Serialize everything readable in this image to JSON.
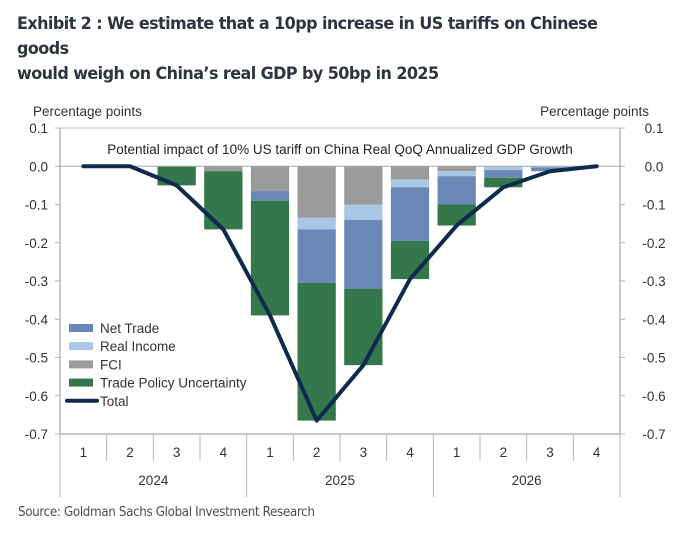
{
  "header": {
    "title_line1": "Exhibit 2 : We estimate that a 10pp increase in US tariffs on Chinese goods",
    "title_line2": "would weigh on China’s real GDP by 50bp in 2025"
  },
  "footer": {
    "source": "Source: Goldman Sachs Global Investment Research"
  },
  "chart_data": {
    "type": "bar",
    "stacked": true,
    "title": "Potential impact of 10% US tariff on China Real QoQ Annualized GDP Growth",
    "ylabel_left": "Percentage points",
    "ylabel_right": "Percentage points",
    "ylim": [
      -0.7,
      0.1
    ],
    "yticks": [
      0.1,
      0.0,
      -0.1,
      -0.2,
      -0.3,
      -0.4,
      -0.5,
      -0.6,
      -0.7
    ],
    "ytick_labels": [
      "0.1",
      "0.0",
      "-0.1",
      "-0.2",
      "-0.3",
      "-0.4",
      "-0.5",
      "-0.6",
      "-0.7"
    ],
    "categories": [
      "1",
      "2",
      "3",
      "4",
      "1",
      "2",
      "3",
      "4",
      "1",
      "2",
      "3",
      "4"
    ],
    "year_groups": [
      {
        "label": "2024",
        "span": 4
      },
      {
        "label": "2025",
        "span": 4
      },
      {
        "label": "2026",
        "span": 4
      }
    ],
    "legend_position": "bottom-left",
    "series": [
      {
        "name": "FCI",
        "kind": "bar",
        "color": "#9b9b9b",
        "values": [
          0,
          0,
          0,
          -0.013,
          -0.065,
          -0.135,
          -0.1,
          -0.035,
          -0.013,
          0,
          0,
          0
        ]
      },
      {
        "name": "Real Income",
        "kind": "bar",
        "color": "#a9c6e4",
        "values": [
          0,
          0,
          0,
          0,
          0,
          -0.03,
          -0.04,
          -0.02,
          -0.013,
          -0.01,
          -0.003,
          0
        ]
      },
      {
        "name": "Net Trade",
        "kind": "bar",
        "color": "#6a88b6",
        "values": [
          0,
          0,
          0,
          0,
          -0.025,
          -0.14,
          -0.18,
          -0.14,
          -0.074,
          -0.02,
          -0.01,
          0
        ]
      },
      {
        "name": "Trade Policy Uncertainty",
        "kind": "bar",
        "color": "#33774a",
        "values": [
          0,
          0,
          -0.05,
          -0.152,
          -0.3,
          -0.36,
          -0.2,
          -0.1,
          -0.055,
          -0.025,
          0,
          0
        ]
      },
      {
        "name": "Total",
        "kind": "line",
        "color": "#0f2a4f",
        "values": [
          0,
          0,
          -0.05,
          -0.165,
          -0.39,
          -0.665,
          -0.52,
          -0.295,
          -0.155,
          -0.055,
          -0.013,
          0
        ]
      }
    ],
    "legend": [
      "Net Trade",
      "Real Income",
      "FCI",
      "Trade Policy Uncertainty",
      "Total"
    ],
    "grid": false
  }
}
